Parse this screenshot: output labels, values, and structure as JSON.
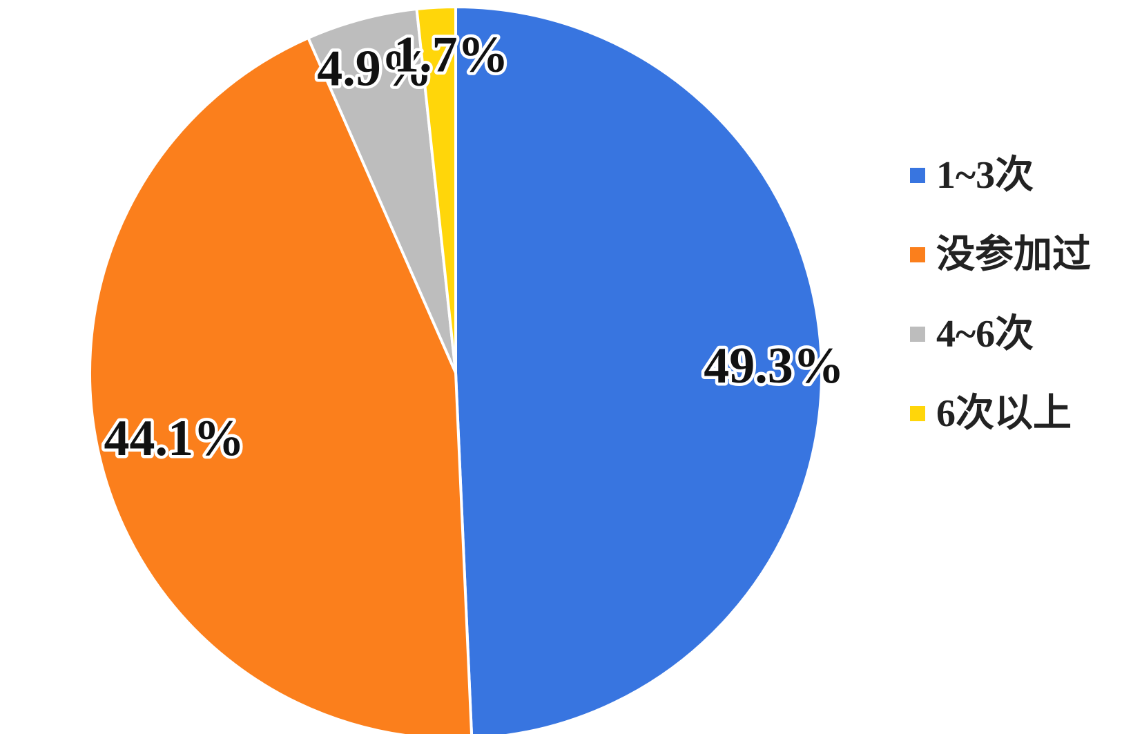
{
  "chart_data": {
    "type": "pie",
    "start_angle_deg": 0,
    "direction": "clockwise",
    "legend_position": "right",
    "slices": [
      {
        "label": "1~3次",
        "value": 49.3,
        "display": "49.3%",
        "color": "#3875E0"
      },
      {
        "label": "没参加过",
        "value": 44.1,
        "display": "44.1%",
        "color": "#FB7F1C"
      },
      {
        "label": "4~6次",
        "value": 4.9,
        "display": "4.9%",
        "color": "#BDBDBD"
      },
      {
        "label": "6次以上",
        "value": 1.7,
        "display": "1.7%",
        "color": "#FFD60A"
      }
    ]
  }
}
